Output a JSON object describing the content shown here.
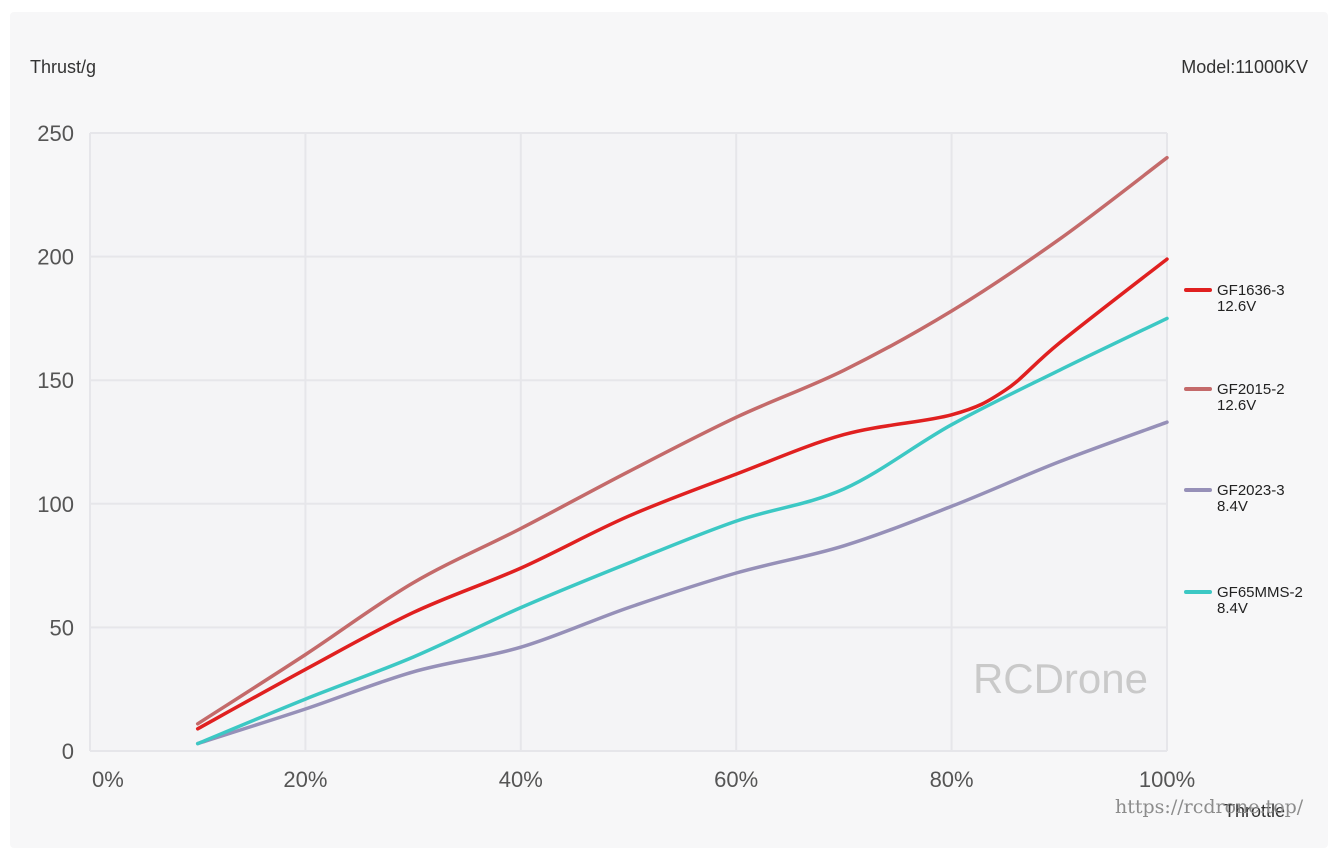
{
  "chart_data": {
    "type": "line",
    "title": "",
    "ylabel": "Thrust/g",
    "xlabel": "Throttle",
    "corner_label": "Model:11000KV",
    "x_ticks": [
      "0%",
      "20%",
      "40%",
      "60%",
      "80%",
      "100%"
    ],
    "y_ticks": [
      "0",
      "50",
      "100",
      "150",
      "200",
      "250"
    ],
    "xlim": [
      0,
      100
    ],
    "ylim": [
      0,
      250
    ],
    "grid": true,
    "legend_position": "right",
    "series": [
      {
        "name": "GF1636-3",
        "voltage": "12.6V",
        "color": "#e02020",
        "points": [
          [
            10,
            9
          ],
          [
            20,
            33
          ],
          [
            30,
            56
          ],
          [
            40,
            74
          ],
          [
            50,
            95
          ],
          [
            60,
            112
          ],
          [
            70,
            128
          ],
          [
            80,
            136
          ],
          [
            85,
            146
          ],
          [
            90,
            165
          ],
          [
            100,
            199
          ]
        ]
      },
      {
        "name": "GF2015-2",
        "voltage": "12.6V",
        "color": "#c46a6a",
        "points": [
          [
            10,
            11
          ],
          [
            20,
            39
          ],
          [
            30,
            68
          ],
          [
            40,
            90
          ],
          [
            50,
            113
          ],
          [
            60,
            135
          ],
          [
            70,
            154
          ],
          [
            80,
            178
          ],
          [
            90,
            207
          ],
          [
            100,
            240
          ]
        ]
      },
      {
        "name": "GF2023-3",
        "voltage": "8.4V",
        "color": "#9690b8",
        "points": [
          [
            10,
            3
          ],
          [
            20,
            17
          ],
          [
            30,
            32
          ],
          [
            40,
            42
          ],
          [
            50,
            58
          ],
          [
            60,
            72
          ],
          [
            70,
            83
          ],
          [
            80,
            99
          ],
          [
            90,
            117
          ],
          [
            100,
            133
          ]
        ]
      },
      {
        "name": "GF65MMS-2",
        "voltage": "8.4V",
        "color": "#3cc8c4",
        "points": [
          [
            10,
            3
          ],
          [
            20,
            21
          ],
          [
            30,
            38
          ],
          [
            40,
            58
          ],
          [
            50,
            76
          ],
          [
            60,
            93
          ],
          [
            70,
            106
          ],
          [
            80,
            132
          ],
          [
            90,
            154
          ],
          [
            100,
            175
          ]
        ]
      }
    ]
  },
  "watermark": "RCDrone",
  "url_watermark": "https://rcdrone.top/"
}
